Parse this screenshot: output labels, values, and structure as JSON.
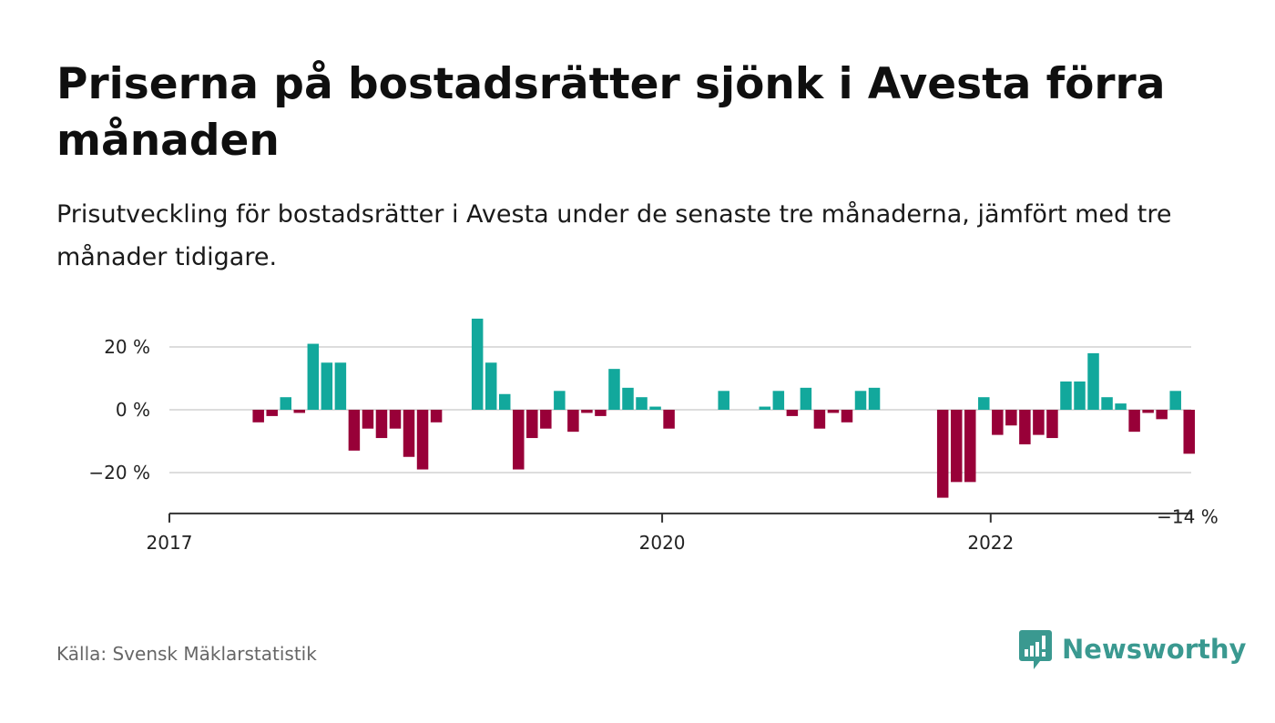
{
  "header": {
    "title": "Priserna på bostadsrätter sjönk i Avesta förra månaden",
    "subtitle": "Prisutveckling för bostadsrätter i Avesta under de senaste tre månaderna, jämfört med tre månader tidigare."
  },
  "footer": {
    "source": "Källa: Svensk Mäklarstatistik",
    "brand": "Newsworthy"
  },
  "colors": {
    "positive": "#12a89c",
    "negative": "#980038",
    "brand": "#3a9990",
    "grid": "#dddddd",
    "axis": "#333333"
  },
  "chart_data": {
    "type": "bar",
    "title": "",
    "xlabel": "",
    "ylabel": "",
    "ylim": [
      -33,
      30
    ],
    "y_ticks": [
      20,
      0,
      -20
    ],
    "y_tick_labels": [
      "20 %",
      "0 %",
      "−20 %"
    ],
    "x_ticks": [
      {
        "label": "2017",
        "index": 0
      },
      {
        "label": "2020",
        "index": 36
      },
      {
        "label": "2022",
        "index": 60
      }
    ],
    "last_value_label": "−14 %",
    "series": [
      {
        "values": [
          null,
          null,
          null,
          null,
          null,
          null,
          -4,
          -2,
          4,
          -1,
          21,
          15,
          15,
          -13,
          -6,
          -9,
          -6,
          -15,
          -19,
          -4,
          null,
          null,
          29,
          15,
          5,
          -19,
          -9,
          -6,
          6,
          -7,
          -1,
          -2,
          13,
          7,
          4,
          1,
          -6,
          null,
          null,
          null,
          6,
          null,
          null,
          1,
          6,
          -2,
          7,
          -6,
          -1,
          -4,
          6,
          7,
          null,
          null,
          null,
          null,
          -28,
          -23,
          -23,
          4,
          -8,
          -5,
          -11,
          -8,
          -9,
          9,
          9,
          18,
          4,
          2,
          -7,
          -1,
          -3,
          6,
          -14
        ]
      }
    ]
  }
}
